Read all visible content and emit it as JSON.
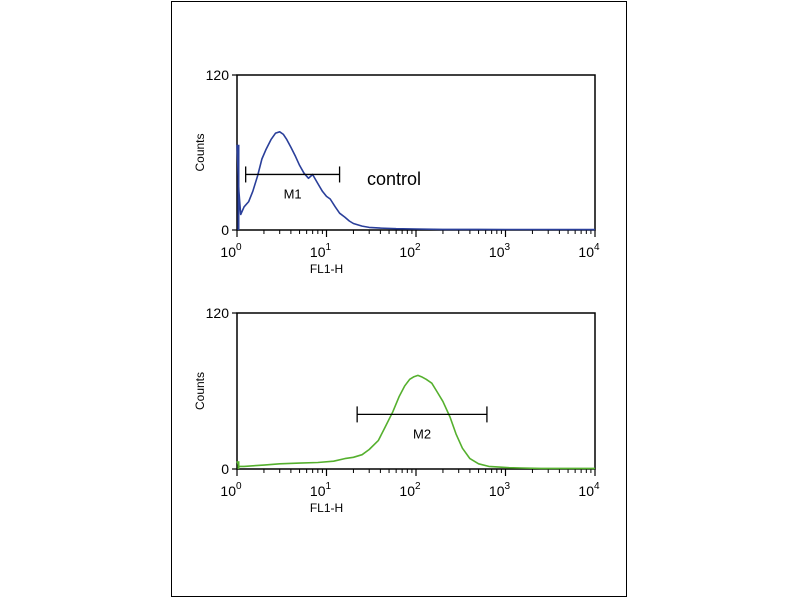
{
  "chart_data": [
    {
      "type": "line",
      "title": "",
      "xlabel": "FL1-H",
      "ylabel": "Counts",
      "x_scale": "log",
      "xlim": [
        1,
        10000
      ],
      "ylim": [
        0,
        120
      ],
      "x_ticks": [
        {
          "base": "10",
          "exp": "0"
        },
        {
          "base": "10",
          "exp": "1"
        },
        {
          "base": "10",
          "exp": "2"
        },
        {
          "base": "10",
          "exp": "3"
        },
        {
          "base": "10",
          "exp": "4"
        }
      ],
      "y_ticks": [
        "0",
        "120"
      ],
      "annotation": "control",
      "gate": {
        "label": "M1",
        "x_start": 1.25,
        "x_end": 14
      },
      "series": [
        {
          "color": "#2a3f9a",
          "x": [
            1.0,
            1.05,
            1.1,
            1.2,
            1.35,
            1.5,
            1.7,
            1.9,
            2.1,
            2.4,
            2.7,
            3.0,
            3.3,
            3.6,
            4.0,
            4.5,
            5.0,
            5.6,
            6.3,
            7.0,
            8.0,
            9.0,
            10,
            11,
            12.5,
            14,
            16,
            18,
            20,
            25,
            30,
            40,
            60,
            100,
            200,
            500,
            1000,
            3000,
            10000
          ],
          "y": [
            66,
            30,
            12,
            18,
            22,
            30,
            42,
            55,
            62,
            70,
            75,
            76,
            74,
            70,
            64,
            57,
            50,
            44,
            40,
            43,
            36,
            30,
            26,
            24,
            18,
            13,
            10,
            7,
            5,
            3,
            2,
            1.5,
            1,
            0.8,
            0.5,
            0.5,
            0.4,
            0.4,
            0.3
          ]
        }
      ]
    },
    {
      "type": "line",
      "title": "",
      "xlabel": "FL1-H",
      "ylabel": "Counts",
      "x_scale": "log",
      "xlim": [
        1,
        10000
      ],
      "ylim": [
        0,
        120
      ],
      "x_ticks": [
        {
          "base": "10",
          "exp": "0"
        },
        {
          "base": "10",
          "exp": "1"
        },
        {
          "base": "10",
          "exp": "2"
        },
        {
          "base": "10",
          "exp": "3"
        },
        {
          "base": "10",
          "exp": "4"
        }
      ],
      "y_ticks": [
        "0",
        "120"
      ],
      "gate": {
        "label": "M2",
        "x_start": 22,
        "x_end": 620
      },
      "series": [
        {
          "color": "#55b02e",
          "x": [
            1.0,
            1.05,
            1.2,
            1.5,
            2,
            3,
            5,
            8,
            12,
            16,
            20,
            25,
            30,
            38,
            45,
            55,
            65,
            75,
            85,
            95,
            105,
            115,
            130,
            150,
            170,
            200,
            240,
            280,
            330,
            400,
            500,
            650,
            850,
            1100,
            1500,
            2500,
            5000,
            10000
          ],
          "y": [
            6,
            2,
            2,
            2.5,
            3,
            4,
            4.5,
            5,
            6,
            8,
            9,
            11,
            15,
            22,
            32,
            44,
            56,
            64,
            69,
            71,
            72,
            71,
            69,
            66,
            60,
            52,
            40,
            27,
            16,
            8,
            4,
            2,
            1.5,
            1,
            0.8,
            0.5,
            0.5,
            0.5
          ]
        }
      ]
    }
  ]
}
